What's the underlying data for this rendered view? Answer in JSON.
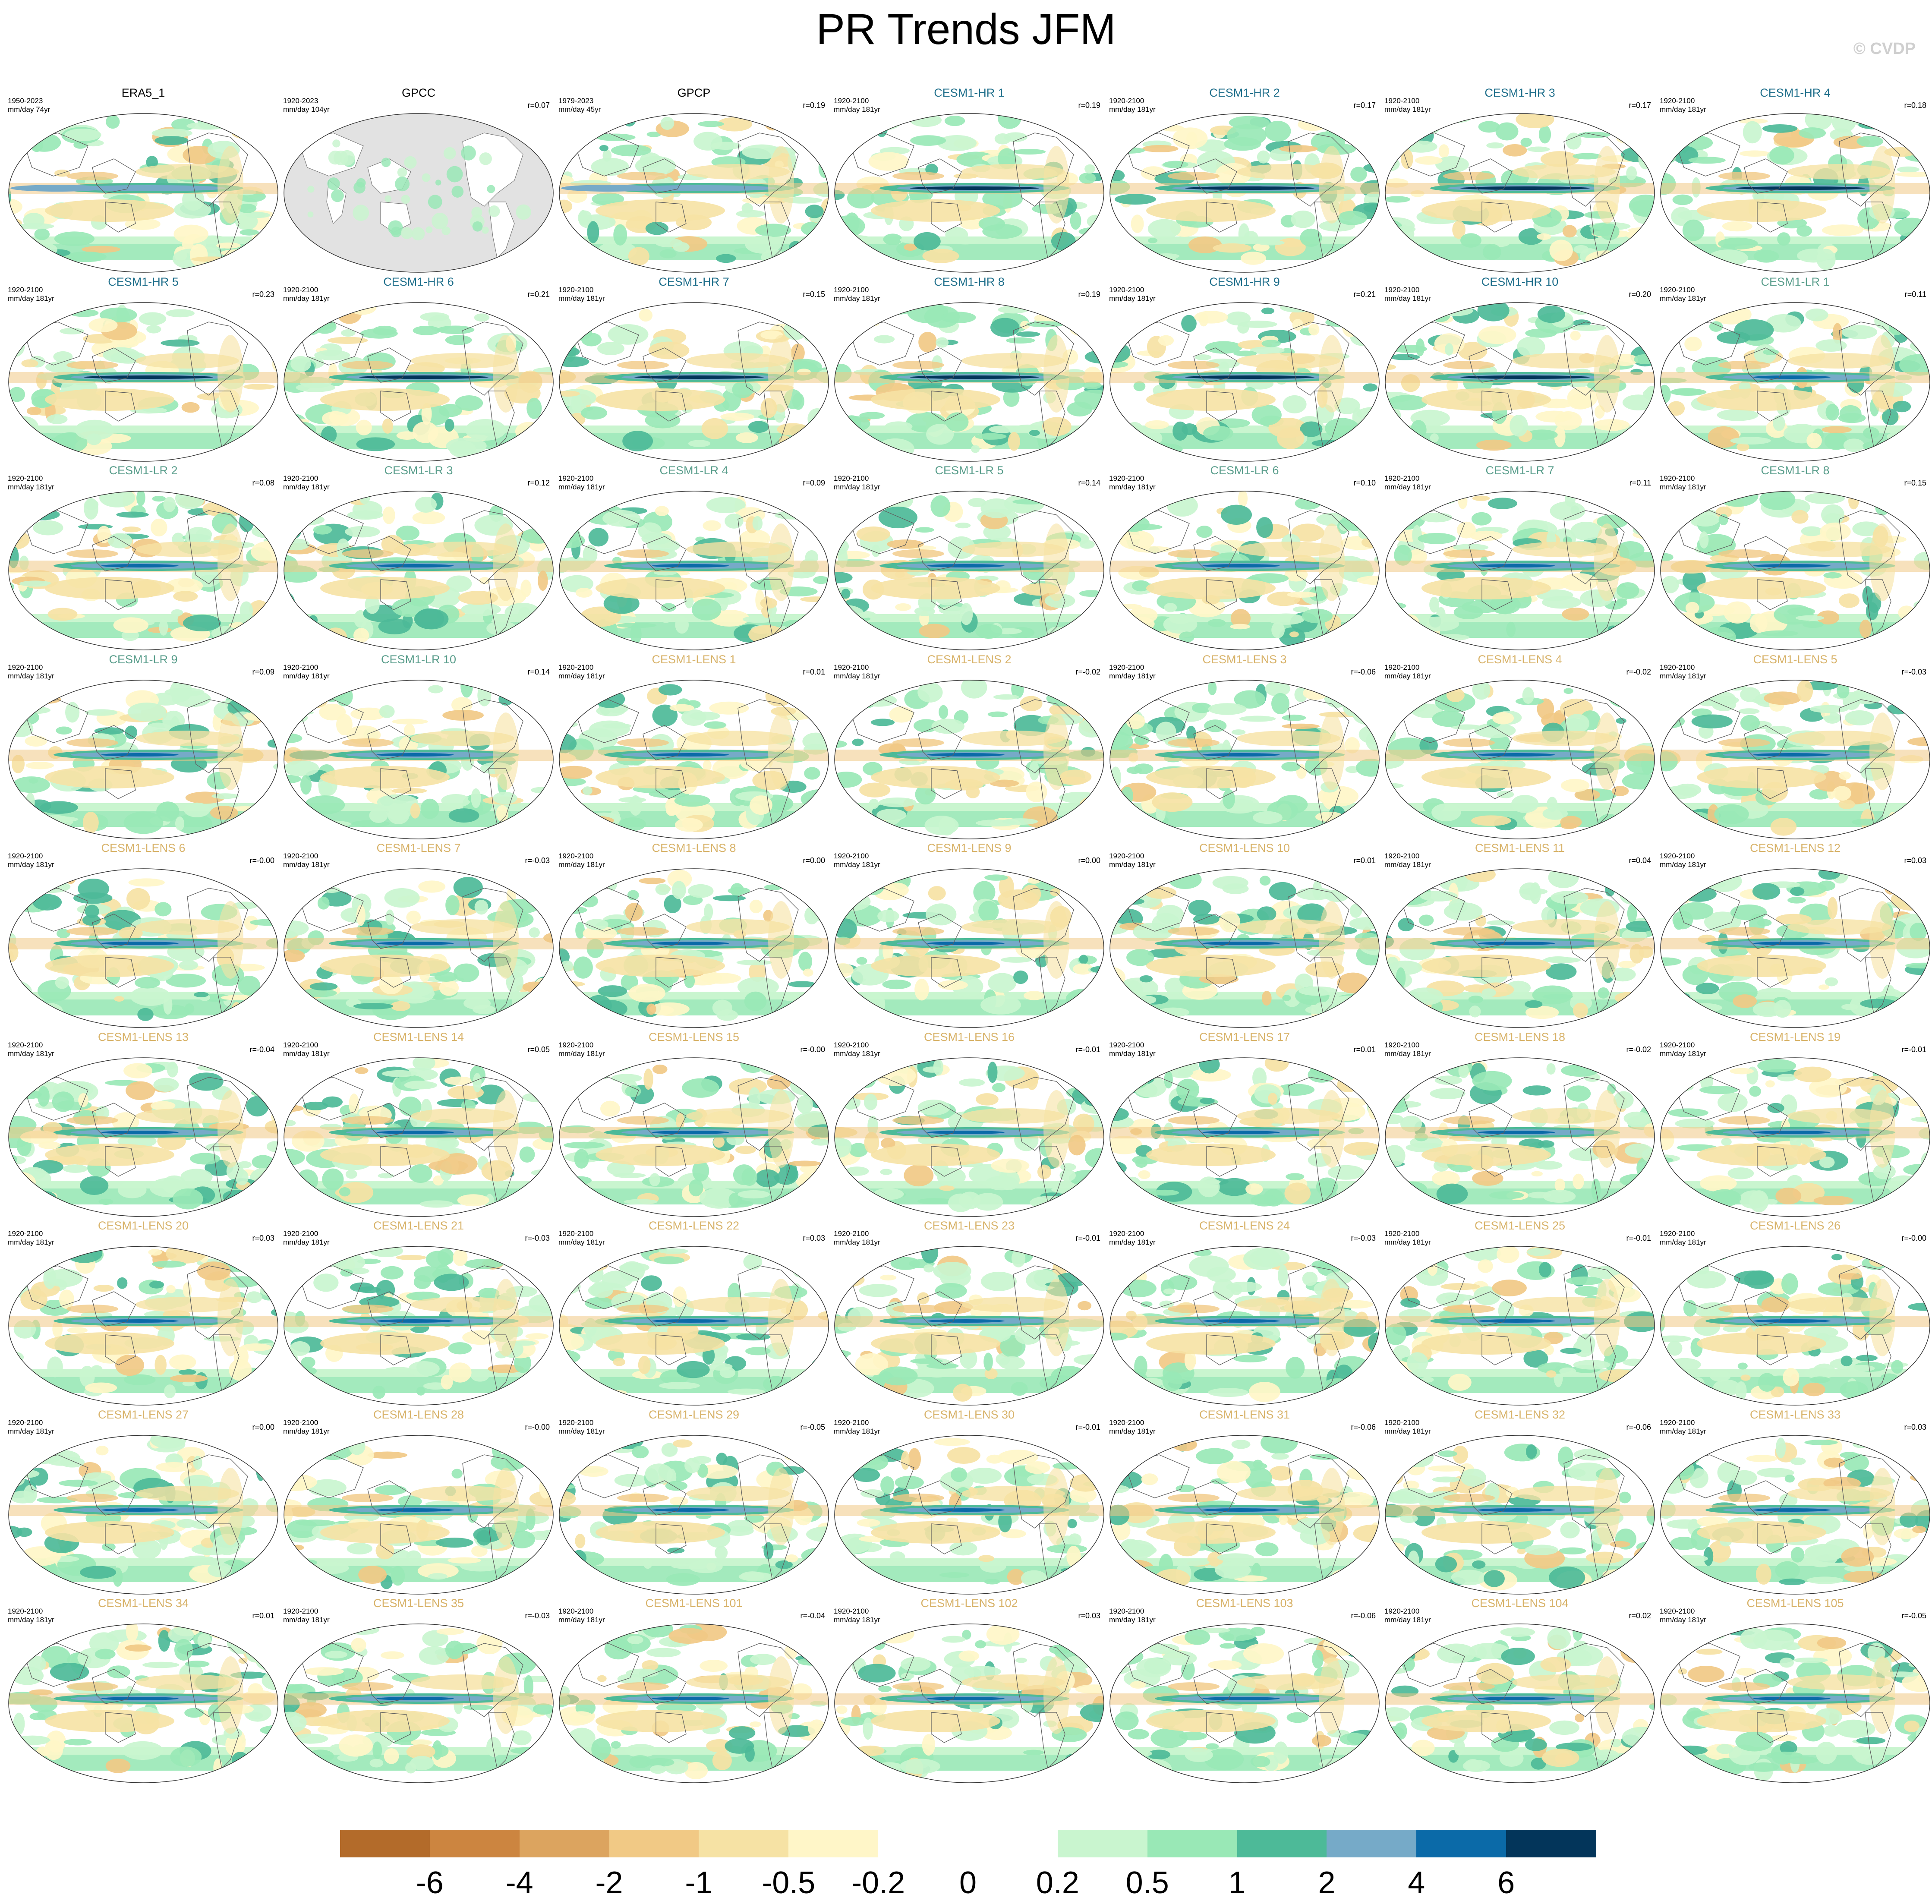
{
  "title": "PR Trends JFM",
  "watermark": "© CVDP",
  "colors": {
    "obs_title": "#000000",
    "hr_title": "#1f6f8b",
    "lr_title": "#5a9e8c",
    "lens_title": "#d8b36a",
    "ocean_missing": "#e2e2e2",
    "map_outline": "#7a7a7a"
  },
  "colorbar": {
    "colors": [
      "#b36b2a",
      "#cc8540",
      "#dca45f",
      "#f1c985",
      "#f6e2a4",
      "#fff6c8",
      "#ffffff",
      "#ffffff",
      "#c9f5cf",
      "#99e8b6",
      "#4dba98",
      "#76aac8",
      "#0b6aa8",
      "#03355a"
    ],
    "labels": [
      "-6",
      "-4",
      "-2",
      "-1",
      "-0.5",
      "-0.2",
      "0",
      "0.2",
      "0.5",
      "1",
      "2",
      "4",
      "6"
    ]
  },
  "panels": [
    {
      "name": "ERA5_1",
      "period": "1950-2023",
      "units": "mm/day 74yr",
      "r": "",
      "group": "obs"
    },
    {
      "name": "GPCC",
      "period": "1920-2023",
      "units": "mm/day 104yr",
      "r": "r=0.07",
      "group": "obs_gpcc"
    },
    {
      "name": "GPCP",
      "period": "1979-2023",
      "units": "mm/day 45yr",
      "r": "r=0.19",
      "group": "obs"
    },
    {
      "name": "CESM1-HR 1",
      "period": "1920-2100",
      "units": "mm/day 181yr",
      "r": "r=0.19",
      "group": "hr"
    },
    {
      "name": "CESM1-HR 2",
      "period": "1920-2100",
      "units": "mm/day 181yr",
      "r": "r=0.17",
      "group": "hr"
    },
    {
      "name": "CESM1-HR 3",
      "period": "1920-2100",
      "units": "mm/day 181yr",
      "r": "r=0.17",
      "group": "hr"
    },
    {
      "name": "CESM1-HR 4",
      "period": "1920-2100",
      "units": "mm/day 181yr",
      "r": "r=0.18",
      "group": "hr"
    },
    {
      "name": "CESM1-HR 5",
      "period": "1920-2100",
      "units": "mm/day 181yr",
      "r": "r=0.23",
      "group": "hr"
    },
    {
      "name": "CESM1-HR 6",
      "period": "1920-2100",
      "units": "mm/day 181yr",
      "r": "r=0.21",
      "group": "hr"
    },
    {
      "name": "CESM1-HR 7",
      "period": "1920-2100",
      "units": "mm/day 181yr",
      "r": "r=0.15",
      "group": "hr"
    },
    {
      "name": "CESM1-HR 8",
      "period": "1920-2100",
      "units": "mm/day 181yr",
      "r": "r=0.19",
      "group": "hr"
    },
    {
      "name": "CESM1-HR 9",
      "period": "1920-2100",
      "units": "mm/day 181yr",
      "r": "r=0.21",
      "group": "hr"
    },
    {
      "name": "CESM1-HR 10",
      "period": "1920-2100",
      "units": "mm/day 181yr",
      "r": "r=0.20",
      "group": "hr"
    },
    {
      "name": "CESM1-LR 1",
      "period": "1920-2100",
      "units": "mm/day 181yr",
      "r": "r=0.11",
      "group": "lr"
    },
    {
      "name": "CESM1-LR 2",
      "period": "1920-2100",
      "units": "mm/day 181yr",
      "r": "r=0.08",
      "group": "lr"
    },
    {
      "name": "CESM1-LR 3",
      "period": "1920-2100",
      "units": "mm/day 181yr",
      "r": "r=0.12",
      "group": "lr"
    },
    {
      "name": "CESM1-LR 4",
      "period": "1920-2100",
      "units": "mm/day 181yr",
      "r": "r=0.09",
      "group": "lr"
    },
    {
      "name": "CESM1-LR 5",
      "period": "1920-2100",
      "units": "mm/day 181yr",
      "r": "r=0.14",
      "group": "lr"
    },
    {
      "name": "CESM1-LR 6",
      "period": "1920-2100",
      "units": "mm/day 181yr",
      "r": "r=0.10",
      "group": "lr"
    },
    {
      "name": "CESM1-LR 7",
      "period": "1920-2100",
      "units": "mm/day 181yr",
      "r": "r=0.11",
      "group": "lr"
    },
    {
      "name": "CESM1-LR 8",
      "period": "1920-2100",
      "units": "mm/day 181yr",
      "r": "r=0.15",
      "group": "lr"
    },
    {
      "name": "CESM1-LR 9",
      "period": "1920-2100",
      "units": "mm/day 181yr",
      "r": "r=0.09",
      "group": "lr"
    },
    {
      "name": "CESM1-LR 10",
      "period": "1920-2100",
      "units": "mm/day 181yr",
      "r": "r=0.14",
      "group": "lr"
    },
    {
      "name": "CESM1-LENS 1",
      "period": "1920-2100",
      "units": "mm/day 181yr",
      "r": "r=0.01",
      "group": "lens"
    },
    {
      "name": "CESM1-LENS 2",
      "period": "1920-2100",
      "units": "mm/day 181yr",
      "r": "r=-0.02",
      "group": "lens"
    },
    {
      "name": "CESM1-LENS 3",
      "period": "1920-2100",
      "units": "mm/day 181yr",
      "r": "r=-0.06",
      "group": "lens"
    },
    {
      "name": "CESM1-LENS 4",
      "period": "1920-2100",
      "units": "mm/day 181yr",
      "r": "r=-0.02",
      "group": "lens"
    },
    {
      "name": "CESM1-LENS 5",
      "period": "1920-2100",
      "units": "mm/day 181yr",
      "r": "r=-0.03",
      "group": "lens"
    },
    {
      "name": "CESM1-LENS 6",
      "period": "1920-2100",
      "units": "mm/day 181yr",
      "r": "r=-0.00",
      "group": "lens"
    },
    {
      "name": "CESM1-LENS 7",
      "period": "1920-2100",
      "units": "mm/day 181yr",
      "r": "r=-0.03",
      "group": "lens"
    },
    {
      "name": "CESM1-LENS 8",
      "period": "1920-2100",
      "units": "mm/day 181yr",
      "r": "r=0.00",
      "group": "lens"
    },
    {
      "name": "CESM1-LENS 9",
      "period": "1920-2100",
      "units": "mm/day 181yr",
      "r": "r=0.00",
      "group": "lens"
    },
    {
      "name": "CESM1-LENS 10",
      "period": "1920-2100",
      "units": "mm/day 181yr",
      "r": "r=0.01",
      "group": "lens"
    },
    {
      "name": "CESM1-LENS 11",
      "period": "1920-2100",
      "units": "mm/day 181yr",
      "r": "r=0.04",
      "group": "lens"
    },
    {
      "name": "CESM1-LENS 12",
      "period": "1920-2100",
      "units": "mm/day 181yr",
      "r": "r=0.03",
      "group": "lens"
    },
    {
      "name": "CESM1-LENS 13",
      "period": "1920-2100",
      "units": "mm/day 181yr",
      "r": "r=-0.04",
      "group": "lens"
    },
    {
      "name": "CESM1-LENS 14",
      "period": "1920-2100",
      "units": "mm/day 181yr",
      "r": "r=0.05",
      "group": "lens"
    },
    {
      "name": "CESM1-LENS 15",
      "period": "1920-2100",
      "units": "mm/day 181yr",
      "r": "r=-0.00",
      "group": "lens"
    },
    {
      "name": "CESM1-LENS 16",
      "period": "1920-2100",
      "units": "mm/day 181yr",
      "r": "r=-0.01",
      "group": "lens"
    },
    {
      "name": "CESM1-LENS 17",
      "period": "1920-2100",
      "units": "mm/day 181yr",
      "r": "r=0.01",
      "group": "lens"
    },
    {
      "name": "CESM1-LENS 18",
      "period": "1920-2100",
      "units": "mm/day 181yr",
      "r": "r=-0.02",
      "group": "lens"
    },
    {
      "name": "CESM1-LENS 19",
      "period": "1920-2100",
      "units": "mm/day 181yr",
      "r": "r=-0.01",
      "group": "lens"
    },
    {
      "name": "CESM1-LENS 20",
      "period": "1920-2100",
      "units": "mm/day 181yr",
      "r": "r=0.03",
      "group": "lens"
    },
    {
      "name": "CESM1-LENS 21",
      "period": "1920-2100",
      "units": "mm/day 181yr",
      "r": "r=-0.03",
      "group": "lens"
    },
    {
      "name": "CESM1-LENS 22",
      "period": "1920-2100",
      "units": "mm/day 181yr",
      "r": "r=0.03",
      "group": "lens"
    },
    {
      "name": "CESM1-LENS 23",
      "period": "1920-2100",
      "units": "mm/day 181yr",
      "r": "r=-0.01",
      "group": "lens"
    },
    {
      "name": "CESM1-LENS 24",
      "period": "1920-2100",
      "units": "mm/day 181yr",
      "r": "r=-0.03",
      "group": "lens"
    },
    {
      "name": "CESM1-LENS 25",
      "period": "1920-2100",
      "units": "mm/day 181yr",
      "r": "r=-0.01",
      "group": "lens"
    },
    {
      "name": "CESM1-LENS 26",
      "period": "1920-2100",
      "units": "mm/day 181yr",
      "r": "r=-0.00",
      "group": "lens"
    },
    {
      "name": "CESM1-LENS 27",
      "period": "1920-2100",
      "units": "mm/day 181yr",
      "r": "r=0.00",
      "group": "lens"
    },
    {
      "name": "CESM1-LENS 28",
      "period": "1920-2100",
      "units": "mm/day 181yr",
      "r": "r=-0.00",
      "group": "lens"
    },
    {
      "name": "CESM1-LENS 29",
      "period": "1920-2100",
      "units": "mm/day 181yr",
      "r": "r=-0.05",
      "group": "lens"
    },
    {
      "name": "CESM1-LENS 30",
      "period": "1920-2100",
      "units": "mm/day 181yr",
      "r": "r=-0.01",
      "group": "lens"
    },
    {
      "name": "CESM1-LENS 31",
      "period": "1920-2100",
      "units": "mm/day 181yr",
      "r": "r=-0.06",
      "group": "lens"
    },
    {
      "name": "CESM1-LENS 32",
      "period": "1920-2100",
      "units": "mm/day 181yr",
      "r": "r=-0.06",
      "group": "lens"
    },
    {
      "name": "CESM1-LENS 33",
      "period": "1920-2100",
      "units": "mm/day 181yr",
      "r": "r=0.03",
      "group": "lens"
    },
    {
      "name": "CESM1-LENS 34",
      "period": "1920-2100",
      "units": "mm/day 181yr",
      "r": "r=0.01",
      "group": "lens"
    },
    {
      "name": "CESM1-LENS 35",
      "period": "1920-2100",
      "units": "mm/day 181yr",
      "r": "r=-0.03",
      "group": "lens"
    },
    {
      "name": "CESM1-LENS 101",
      "period": "1920-2100",
      "units": "mm/day 181yr",
      "r": "r=-0.04",
      "group": "lens"
    },
    {
      "name": "CESM1-LENS 102",
      "period": "1920-2100",
      "units": "mm/day 181yr",
      "r": "r=0.03",
      "group": "lens"
    },
    {
      "name": "CESM1-LENS 103",
      "period": "1920-2100",
      "units": "mm/day 181yr",
      "r": "r=-0.06",
      "group": "lens"
    },
    {
      "name": "CESM1-LENS 104",
      "period": "1920-2100",
      "units": "mm/day 181yr",
      "r": "r=0.02",
      "group": "lens"
    },
    {
      "name": "CESM1-LENS 105",
      "period": "1920-2100",
      "units": "mm/day 181yr",
      "r": "r=-0.05",
      "group": "lens"
    }
  ]
}
